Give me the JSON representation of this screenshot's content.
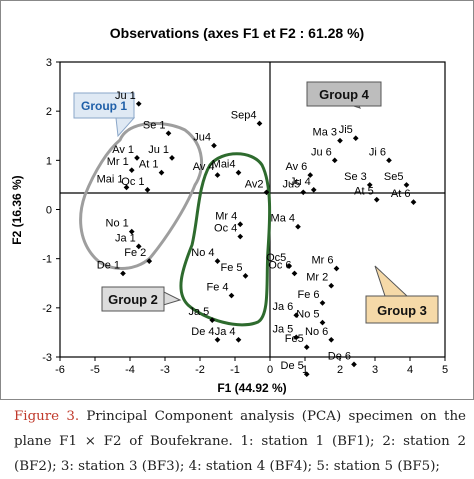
{
  "chart_data": {
    "type": "scatter",
    "title": "Observations (axes F1 et F2 : 61.28 %)",
    "xlabel": "F1 (44.92 %)",
    "ylabel": "F2 (16.36 %)",
    "xlim": [
      -6,
      5
    ],
    "ylim": [
      -3,
      3
    ],
    "x_ticks": [
      "-6",
      "-5",
      "-4",
      "-3",
      "-2",
      "-1",
      "0",
      "1",
      "2",
      "3",
      "4",
      "5"
    ],
    "y_ticks": [
      "-3",
      "-2",
      "-1",
      "0",
      "1",
      "2",
      "3"
    ],
    "grid": false,
    "points": [
      {
        "label": "Ju 1",
        "x": -3.75,
        "y": 2.15
      },
      {
        "label": "Se 1",
        "x": -2.9,
        "y": 1.55
      },
      {
        "label": "Av 1",
        "x": -3.8,
        "y": 1.05
      },
      {
        "label": "Ju 1",
        "x": -2.8,
        "y": 1.05
      },
      {
        "label": "Mr 1",
        "x": -3.95,
        "y": 0.8
      },
      {
        "label": "At 1",
        "x": -3.1,
        "y": 0.75
      },
      {
        "label": "Mai 1",
        "x": -4.1,
        "y": 0.45
      },
      {
        "label": "Oc 1",
        "x": -3.5,
        "y": 0.4
      },
      {
        "label": "No 1",
        "x": -3.95,
        "y": -0.45
      },
      {
        "label": "Ja 1",
        "x": -3.75,
        "y": -0.75
      },
      {
        "label": "Fe 2",
        "x": -3.45,
        "y": -1.05
      },
      {
        "label": "De 1",
        "x": -4.2,
        "y": -1.3
      },
      {
        "label": "Sep4",
        "x": -0.3,
        "y": 1.75
      },
      {
        "label": "Ju4",
        "x": -1.6,
        "y": 1.3
      },
      {
        "label": "Av 4",
        "x": -1.5,
        "y": 0.7
      },
      {
        "label": "Mai4",
        "x": -0.9,
        "y": 0.75
      },
      {
        "label": "Av2",
        "x": -0.1,
        "y": 0.35
      },
      {
        "label": "Mr 4",
        "x": -0.85,
        "y": -0.3
      },
      {
        "label": "Oc 4",
        "x": -0.85,
        "y": -0.55
      },
      {
        "label": "No 4",
        "x": -1.5,
        "y": -1.05
      },
      {
        "label": "Fe 5",
        "x": -0.7,
        "y": -1.35
      },
      {
        "label": "Fe 4",
        "x": -1.1,
        "y": -1.75
      },
      {
        "label": "Ja 5",
        "x": -1.65,
        "y": -2.25
      },
      {
        "label": "De 4",
        "x": -1.5,
        "y": -2.65
      },
      {
        "label": "Ja 4",
        "x": -0.9,
        "y": -2.65
      },
      {
        "label": "Ma 3",
        "x": 2.0,
        "y": 1.4
      },
      {
        "label": "Ji5",
        "x": 2.45,
        "y": 1.45
      },
      {
        "label": "Ju 6",
        "x": 1.85,
        "y": 1.0
      },
      {
        "label": "Ji 6",
        "x": 3.4,
        "y": 1.0
      },
      {
        "label": "Av 6",
        "x": 1.15,
        "y": 0.7
      },
      {
        "label": "Se 3",
        "x": 2.85,
        "y": 0.5
      },
      {
        "label": "Se5",
        "x": 3.9,
        "y": 0.5
      },
      {
        "label": "Ju 4",
        "x": 1.25,
        "y": 0.4
      },
      {
        "label": "Ju5",
        "x": 0.95,
        "y": 0.35
      },
      {
        "label": "At 5",
        "x": 3.05,
        "y": 0.2
      },
      {
        "label": "At 6",
        "x": 4.1,
        "y": 0.15
      },
      {
        "label": "Ma 4",
        "x": 0.8,
        "y": -0.35
      },
      {
        "label": "Oc5",
        "x": 0.55,
        "y": -1.15
      },
      {
        "label": "Oc 6",
        "x": 0.7,
        "y": -1.3
      },
      {
        "label": "Mr 6",
        "x": 1.9,
        "y": -1.2
      },
      {
        "label": "Mr 2",
        "x": 1.75,
        "y": -1.55
      },
      {
        "label": "Fe 6",
        "x": 1.5,
        "y": -1.9
      },
      {
        "label": "Ja 6",
        "x": 0.75,
        "y": -2.15
      },
      {
        "label": "No 5",
        "x": 1.5,
        "y": -2.3
      },
      {
        "label": "No 6",
        "x": 1.75,
        "y": -2.65
      },
      {
        "label": "Ja 5",
        "x": 0.75,
        "y": -2.6
      },
      {
        "label": "Fe5",
        "x": 1.05,
        "y": -2.8
      },
      {
        "label": "De 6",
        "x": 2.4,
        "y": -3.15
      },
      {
        "label": "De 5",
        "x": 1.05,
        "y": -3.35
      }
    ],
    "groups": [
      {
        "name": "Group 1",
        "color": "#9e9e9e",
        "box_fill": "#dfe9f4"
      },
      {
        "name": "Group 2",
        "color": "#2e6b2e",
        "box_fill": "#dcdcdc"
      },
      {
        "name": "Group 3",
        "color": "#333333",
        "box_fill": "#f5d9a8"
      },
      {
        "name": "Group 4",
        "color": "#333333",
        "box_fill": "#bdbdbd"
      }
    ]
  },
  "caption": {
    "figure_label": "Figure 3.",
    "text": " Principal Component analysis (PCA) specimen on the plane F1 × F2 of Boufekrane. 1: station 1 (BF1); 2: station 2 (BF2); 3: station 3 (BF3); 4: station 4 (BF4); 5: station 5 (BF5);"
  }
}
